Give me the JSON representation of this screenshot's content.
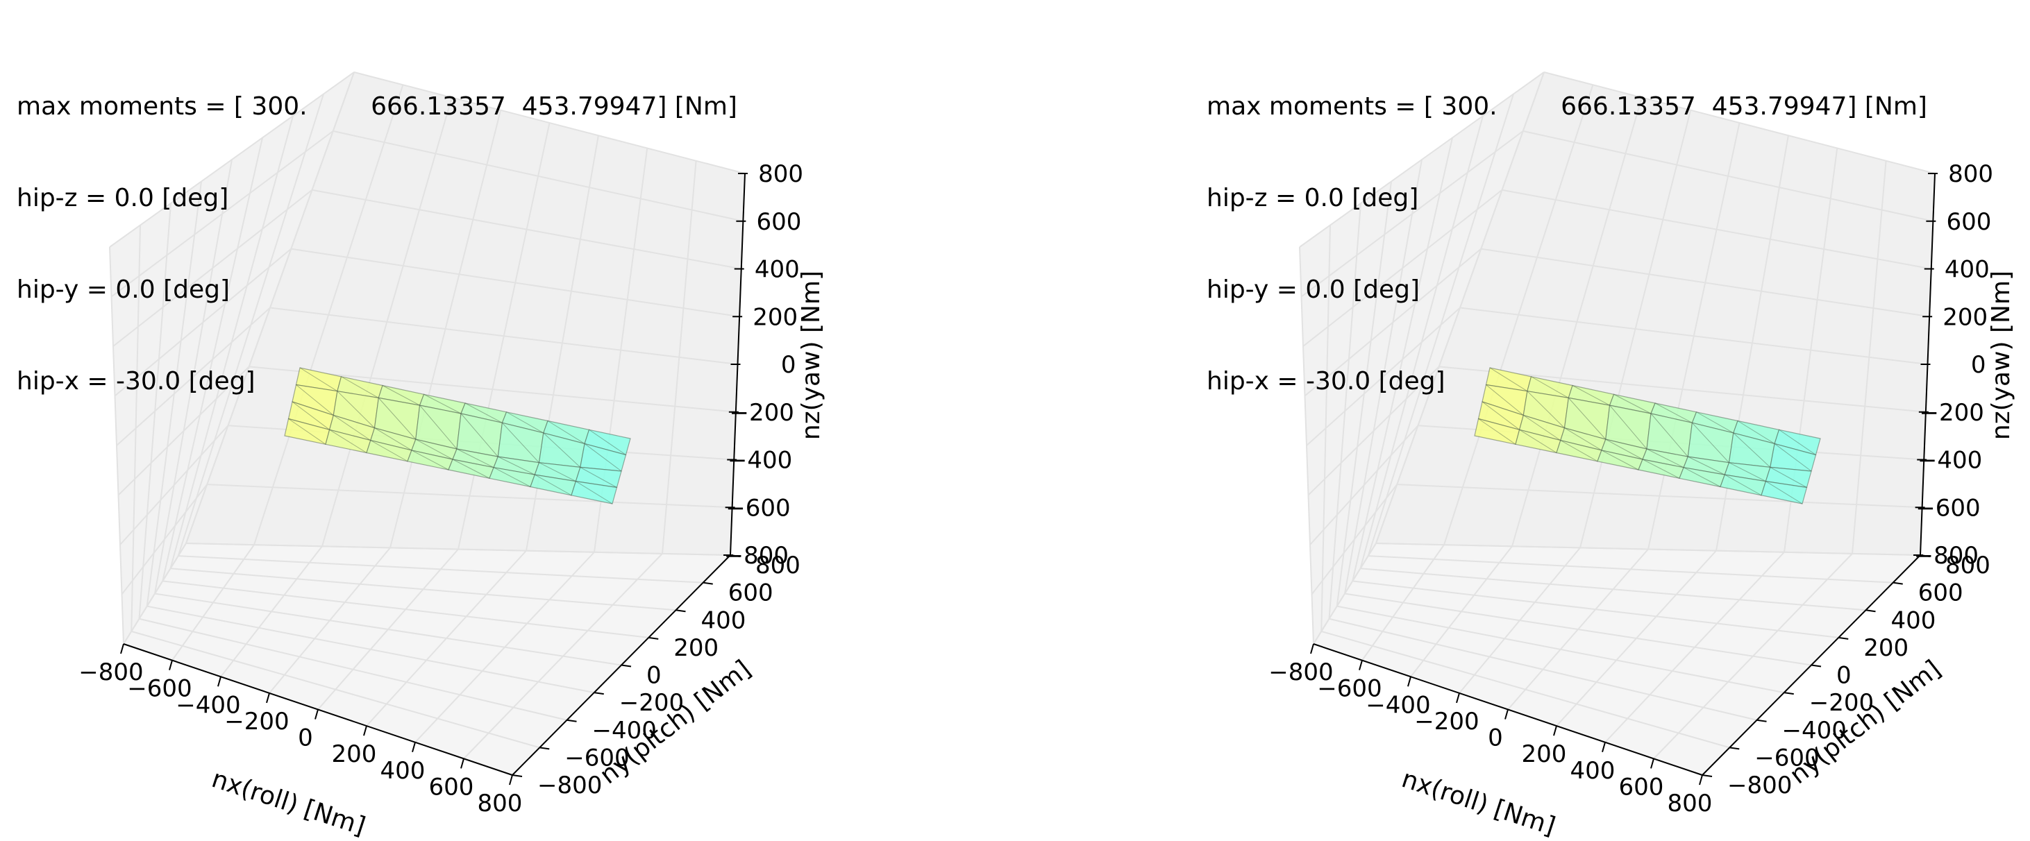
{
  "figure": {
    "panels": [
      {
        "info": {
          "max_moments": "max moments = [ 300.        666.13357  453.79947] [Nm]",
          "hip_z": "hip-z = 0.0 [deg]",
          "hip_y": "hip-y = 0.0 [deg]",
          "hip_x": "hip-x = -30.0 [deg]"
        }
      },
      {
        "info": {
          "max_moments": "max moments = [ 300.        666.13357  453.79947] [Nm]",
          "hip_z": "hip-z = 0.0 [deg]",
          "hip_y": "hip-y = 0.0 [deg]",
          "hip_x": "hip-x = -30.0 [deg]"
        }
      }
    ]
  },
  "chart_data": [
    {
      "type": "surface3d",
      "xlabel": "nx(roll) [Nm]",
      "ylabel": "ny(pitch) [Nm]",
      "zlabel": "nz(yaw) [Nm]",
      "xlim": [
        -800,
        800
      ],
      "ylim": [
        -800,
        800
      ],
      "zlim": [
        -800,
        800
      ],
      "xticks": [
        "−800",
        "−600",
        "−400",
        "−200",
        "0",
        "200",
        "400",
        "600",
        "800"
      ],
      "yticks": [
        "−800",
        "−600",
        "−400",
        "−200",
        "0",
        "200",
        "400",
        "600",
        "800"
      ],
      "zticks": [
        "−800",
        "−600",
        "−400",
        "−200",
        "0",
        "200",
        "400",
        "600",
        "800"
      ],
      "grid": true,
      "colormap": [
        "#ffff80",
        "#80ffee"
      ],
      "surface_ranges": {
        "nx": [
          -300,
          300
        ],
        "ny": [
          -666,
          666
        ],
        "nz": [
          -454,
          454
        ]
      }
    },
    {
      "type": "surface3d",
      "xlabel": "nx(roll) [Nm]",
      "ylabel": "ny(pitch) [Nm]",
      "zlabel": "nz(yaw) [Nm]",
      "xlim": [
        -800,
        800
      ],
      "ylim": [
        -800,
        800
      ],
      "zlim": [
        -800,
        800
      ],
      "xticks": [
        "−800",
        "−600",
        "−400",
        "−200",
        "0",
        "200",
        "400",
        "600",
        "800"
      ],
      "yticks": [
        "−800",
        "−600",
        "−400",
        "−200",
        "0",
        "200",
        "400",
        "600",
        "800"
      ],
      "zticks": [
        "−800",
        "−600",
        "−400",
        "−200",
        "0",
        "200",
        "400",
        "600",
        "800"
      ],
      "grid": true,
      "colormap": [
        "#ffff80",
        "#80ffee"
      ],
      "surface_ranges": {
        "nx": [
          -300,
          300
        ],
        "ny": [
          -666,
          666
        ],
        "nz": [
          -454,
          454
        ]
      }
    }
  ]
}
